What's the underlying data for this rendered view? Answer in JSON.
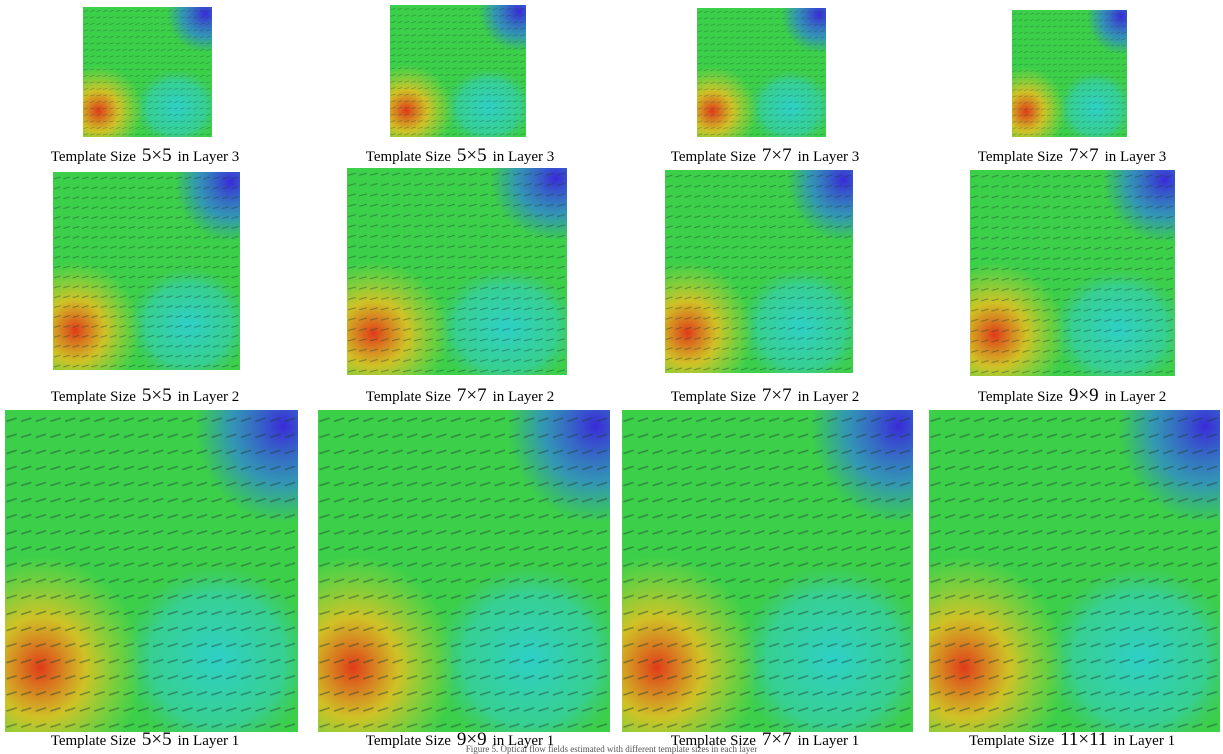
{
  "panels": [
    [
      {
        "label": "Template Size",
        "size": "5×5",
        "layer": "in Layer 3"
      },
      {
        "label": "Template Size",
        "size": "5×5",
        "layer": "in Layer 3"
      },
      {
        "label": "Template Size",
        "size": "7×7",
        "layer": "in Layer 3"
      },
      {
        "label": "Template Size",
        "size": "7×7",
        "layer": "in Layer 3"
      }
    ],
    [
      {
        "label": "Template Size",
        "size": "5×5",
        "layer": "in Layer 2"
      },
      {
        "label": "Template Size",
        "size": "7×7",
        "layer": "in Layer 2"
      },
      {
        "label": "Template Size",
        "size": "7×7",
        "layer": "in Layer 2"
      },
      {
        "label": "Template Size",
        "size": "9×9",
        "layer": "in Layer 2"
      }
    ],
    [
      {
        "label": "Template Size",
        "size": "5×5",
        "layer": "in Layer 1"
      },
      {
        "label": "Template Size",
        "size": "9×9",
        "layer": "in Layer 1"
      },
      {
        "label": "Template Size",
        "size": "7×7",
        "layer": "in Layer 1"
      },
      {
        "label": "Template Size",
        "size": "11×11",
        "layer": "in Layer 1"
      }
    ]
  ],
  "caption": "Figure 5. Optical flow fields estimated with different template sizes in each layer"
}
